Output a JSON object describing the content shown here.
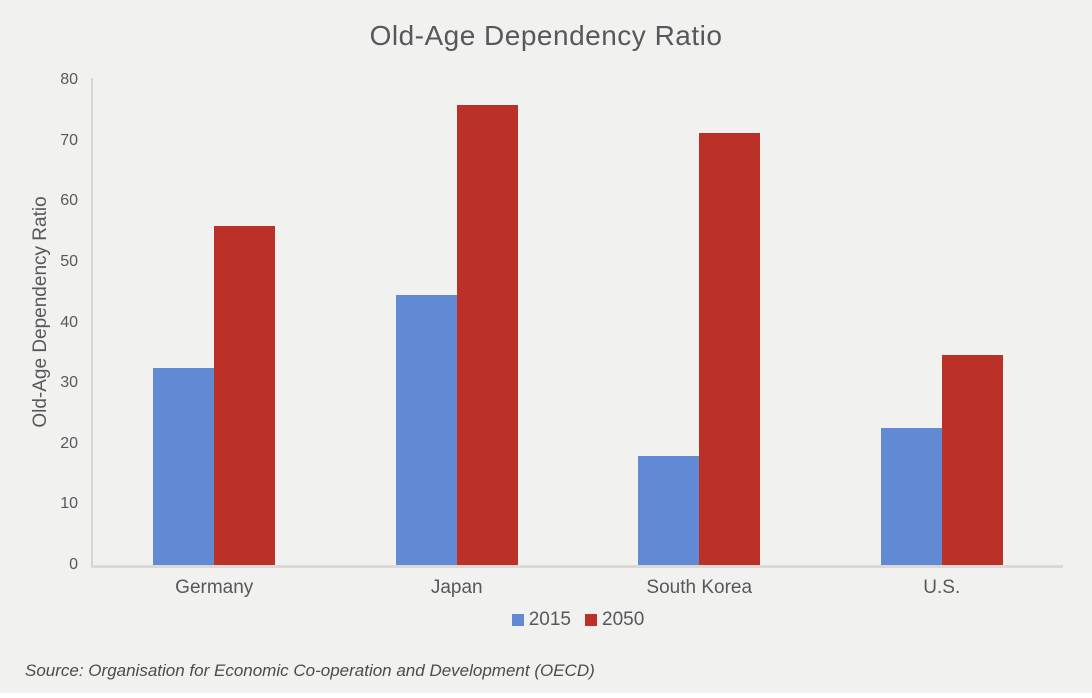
{
  "page": {
    "background": "#f1f1ef"
  },
  "source_note": "Source: Organisation for Economic Co-operation and Development (OECD)",
  "colors": {
    "background": "#f1f1ef",
    "text": "#58585a",
    "axis_line": "#d8d4cf",
    "series_2015": "#6189d4",
    "series_2050": "#bb3127"
  },
  "chart_data": {
    "type": "bar",
    "title": "Old-Age Dependency Ratio",
    "categories": [
      "Germany",
      "Japan",
      "South Korea",
      "U.S."
    ],
    "series": [
      {
        "name": "2015",
        "color": "#6189d4",
        "values": [
          32.5,
          44.5,
          18,
          22.6
        ]
      },
      {
        "name": "2050",
        "color": "#bb3127",
        "values": [
          56,
          75.8,
          71.2,
          34.6
        ]
      }
    ],
    "xlabel": "",
    "ylabel": "Old-Age Dependency Ratio",
    "ylim": [
      0,
      80
    ],
    "yticks": [
      0,
      10,
      20,
      30,
      40,
      50,
      60,
      70,
      80
    ],
    "grid": false,
    "legend_position": "bottom"
  }
}
